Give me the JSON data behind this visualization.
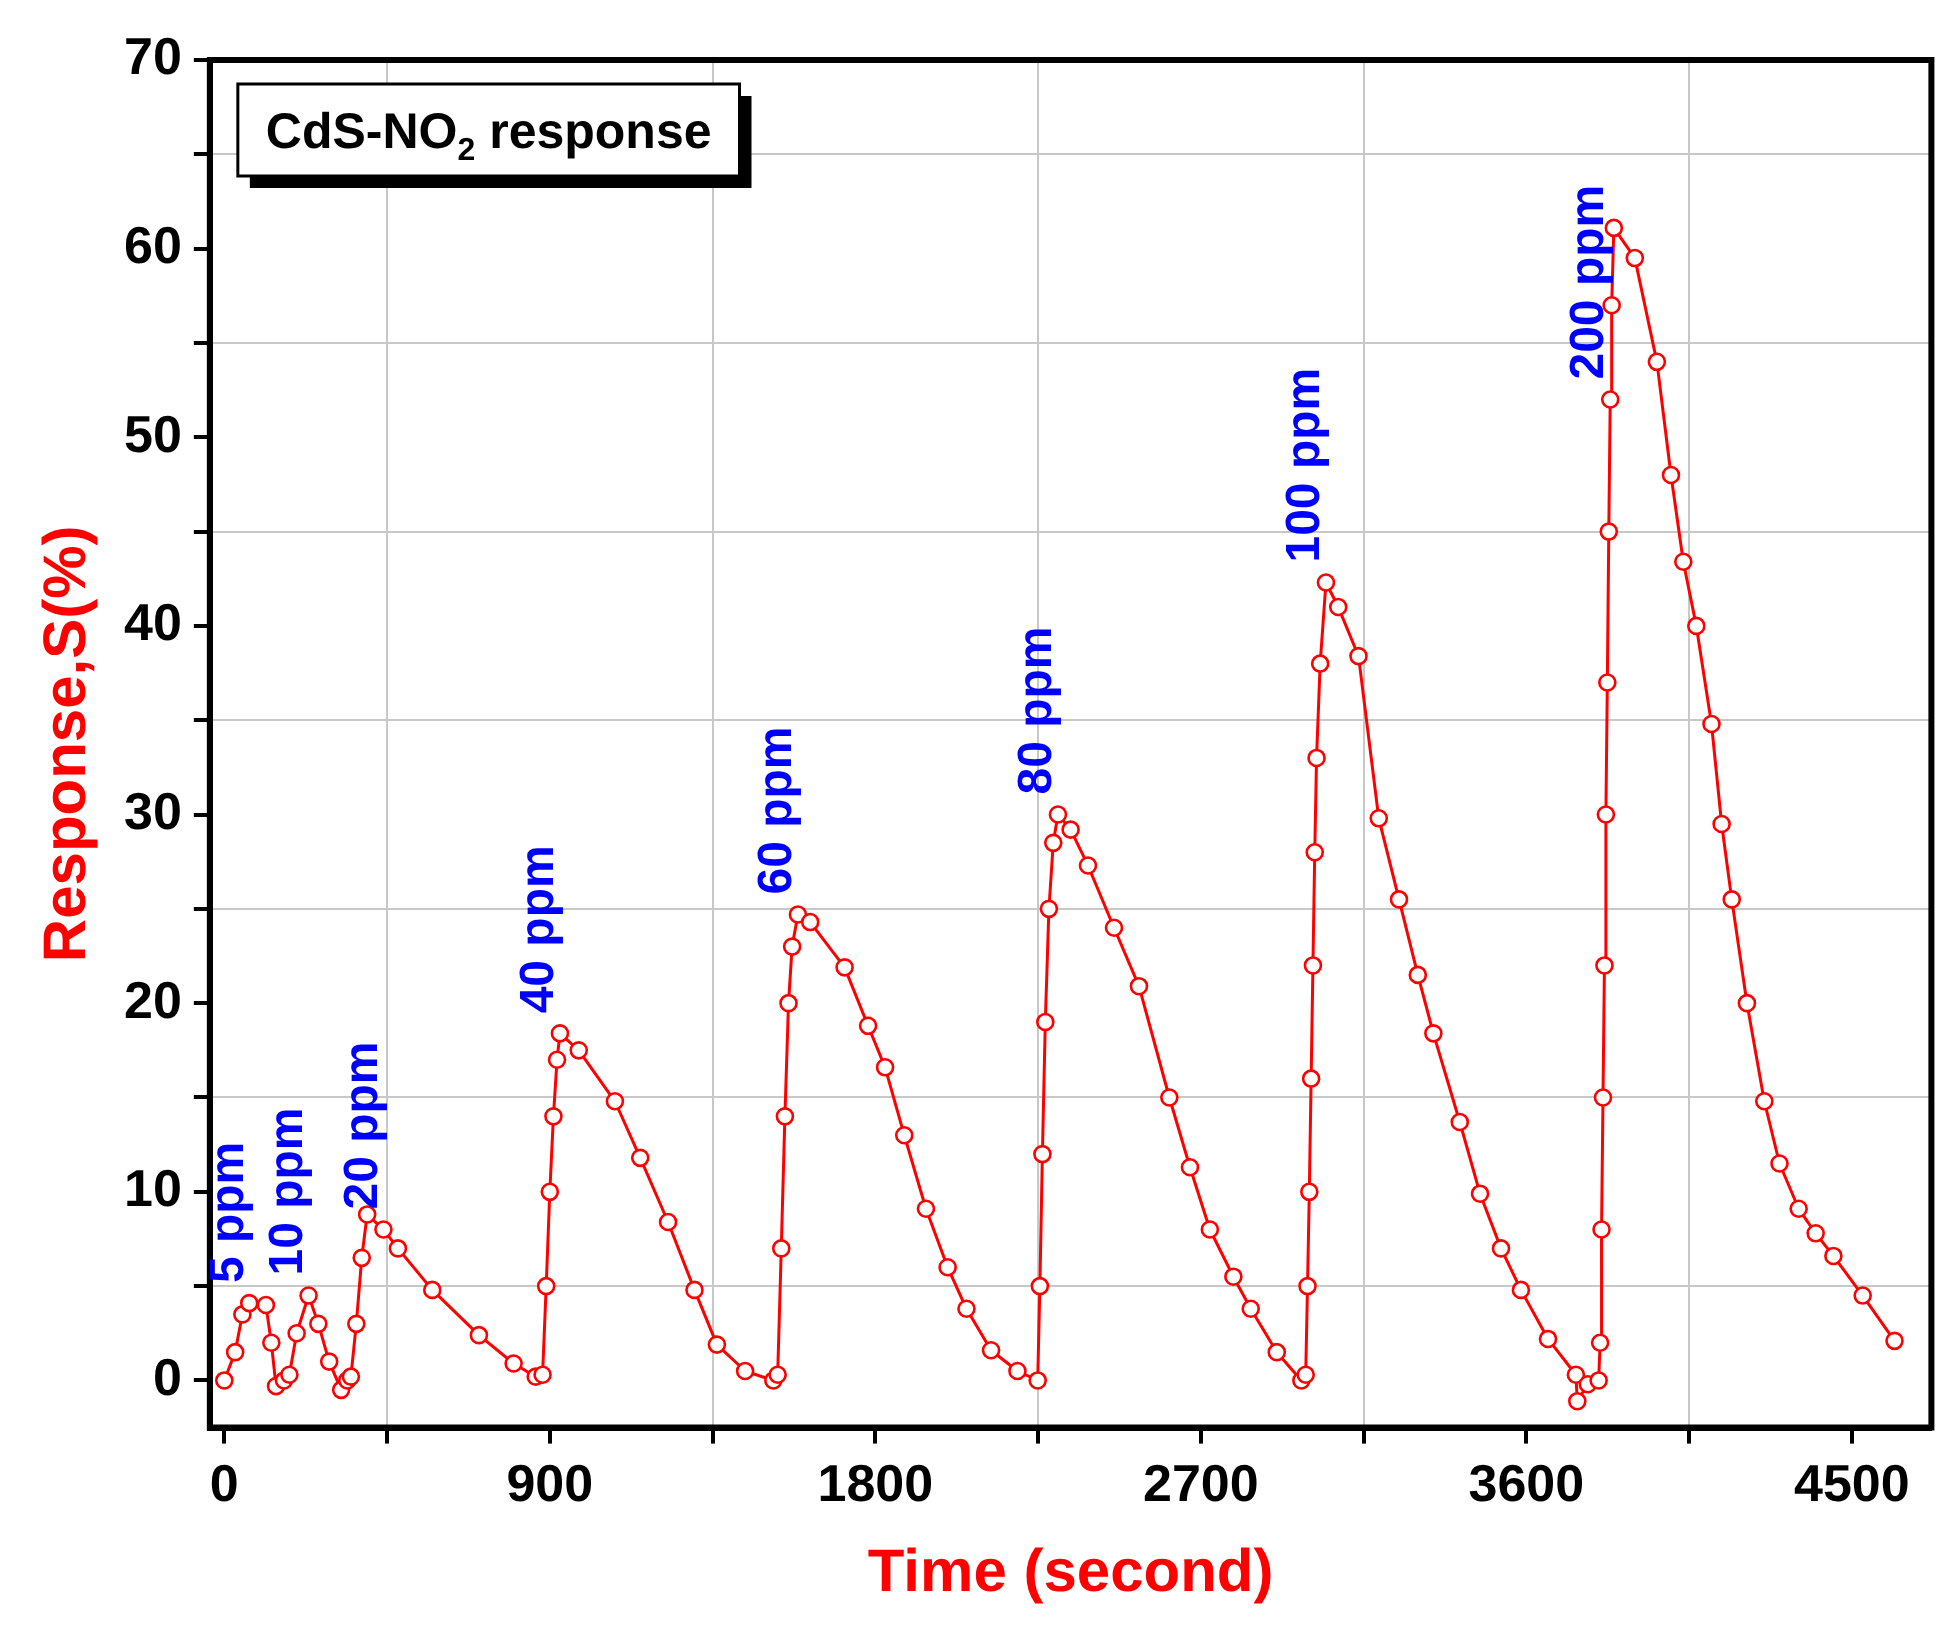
{
  "chart_data": {
    "type": "line",
    "title": "CdS-NO$_{2}$ response",
    "xlabel": "Time (second)",
    "ylabel": "Response,S(%)",
    "xlim": [
      -40,
      4720
    ],
    "ylim": [
      -2.5,
      70
    ],
    "xticks": [
      0,
      {
        "value": 450,
        "label": null
      },
      900,
      {
        "value": 1350,
        "label": null
      },
      1800,
      {
        "value": 2250,
        "label": null
      },
      2700,
      {
        "value": 3150,
        "label": null
      },
      3600,
      {
        "value": 4050,
        "label": null
      },
      4500
    ],
    "yticks": [
      0,
      {
        "value": 5,
        "label": null
      },
      10,
      {
        "value": 15,
        "label": null
      },
      20,
      {
        "value": 25,
        "label": null
      },
      30,
      {
        "value": 35,
        "label": null
      },
      40,
      {
        "value": 45,
        "label": null
      },
      50,
      {
        "value": 55,
        "label": null
      },
      60,
      {
        "value": 65,
        "label": null
      },
      70
    ],
    "grid": true,
    "legend": false,
    "marker": "circle",
    "line_style": "solid",
    "series": [
      {
        "color": "#ff0000",
        "x": [
          0,
          30,
          50,
          69,
          115,
          130,
          143,
          165,
          180,
          200,
          233,
          260,
          290,
          323,
          340,
          350,
          365,
          380,
          395,
          440,
          480,
          575,
          704,
          800,
          861,
          880,
          890,
          900,
          910,
          920,
          928,
          980,
          1080,
          1150,
          1227,
          1300,
          1362,
          1440,
          1518,
          1530,
          1540,
          1550,
          1560,
          1570,
          1586,
          1620,
          1715,
          1780,
          1827,
          1880,
          1940,
          2000,
          2052,
          2120,
          2193,
          2249,
          2255,
          2262,
          2270,
          2280,
          2292,
          2305,
          2340,
          2388,
          2460,
          2529,
          2613,
          2670,
          2725,
          2790,
          2838,
          2910,
          2978,
          2990,
          2995,
          3000,
          3005,
          3010,
          3015,
          3020,
          3030,
          3046,
          3080,
          3136,
          3192,
          3248,
          3300,
          3343,
          3416,
          3472,
          3530,
          3585,
          3660,
          3737,
          3741,
          3770,
          3800,
          3804,
          3808,
          3812,
          3816,
          3820,
          3824,
          3828,
          3832,
          3836,
          3842,
          3900,
          3961,
          4000,
          4034,
          4070,
          4112,
          4140,
          4168,
          4210,
          4258,
          4300,
          4353,
          4400,
          4449,
          4530,
          4618
        ],
        "values": [
          0,
          1.5,
          3.5,
          4.1,
          4.0,
          2,
          -0.3,
          0,
          0.3,
          2.5,
          4.5,
          3,
          1,
          -0.5,
          0,
          0.2,
          3,
          6.5,
          8.8,
          8,
          7.0,
          4.8,
          2.4,
          0.9,
          0.2,
          0.3,
          5,
          10,
          14,
          17,
          18.4,
          17.5,
          14.8,
          11.8,
          8.4,
          4.8,
          1.9,
          0.5,
          0,
          0.3,
          7,
          14,
          20,
          23,
          24.7,
          24.3,
          21.9,
          18.8,
          16.6,
          13,
          9.1,
          6,
          3.8,
          1.6,
          0.5,
          0,
          5,
          12,
          19,
          25,
          28.5,
          30,
          29.2,
          27.3,
          24,
          20.9,
          15,
          11.3,
          8,
          5.5,
          3.8,
          1.5,
          0,
          0.3,
          5,
          10,
          16,
          22,
          28,
          33,
          38,
          42.3,
          41,
          38.4,
          29.8,
          25.5,
          21.5,
          18.4,
          13.7,
          9.9,
          7,
          4.8,
          2.2,
          0.3,
          -1.1,
          -0.2,
          0,
          2,
          8,
          15,
          22,
          30,
          37,
          45,
          52,
          57,
          61.1,
          59.5,
          54,
          48,
          43.4,
          40,
          34.8,
          29.5,
          25.5,
          20,
          14.8,
          11.5,
          9.1,
          7.8,
          6.6,
          4.5,
          2.1
        ]
      }
    ],
    "annotations": [
      {
        "text": "5 ppm",
        "x": 69,
        "y": 4.1
      },
      {
        "text": "10 ppm",
        "x": 233,
        "y": 4.5
      },
      {
        "text": "20 ppm",
        "x": 440,
        "y": 8
      },
      {
        "text": "40 ppm",
        "x": 928,
        "y": 18.4
      },
      {
        "text": "60 ppm",
        "x": 1586,
        "y": 24.7
      },
      {
        "text": "80 ppm",
        "x": 2305,
        "y": 30
      },
      {
        "text": "100 ppm",
        "x": 3046,
        "y": 42.3
      },
      {
        "text": "200 ppm",
        "x": 3832,
        "y": 52
      }
    ]
  }
}
